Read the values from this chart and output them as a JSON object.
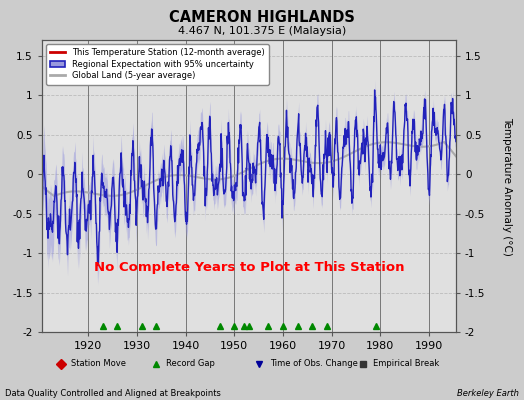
{
  "title": "CAMERON HIGHLANDS",
  "subtitle": "4.467 N, 101.375 E (Malaysia)",
  "ylabel": "Temperature Anomaly (°C)",
  "xlabel_left": "Data Quality Controlled and Aligned at Breakpoints",
  "xlabel_right": "Berkeley Earth",
  "no_data_text": "No Complete Years to Plot at This Station",
  "ylim": [
    -2.0,
    1.7
  ],
  "xlim": [
    1910.5,
    1995.5
  ],
  "yticks": [
    -2,
    -1.5,
    -1,
    -0.5,
    0,
    0.5,
    1,
    1.5
  ],
  "xticks": [
    1920,
    1930,
    1940,
    1950,
    1960,
    1970,
    1980,
    1990
  ],
  "background_color": "#cccccc",
  "plot_bg_color": "#e0e0e0",
  "regional_color": "#2222bb",
  "regional_fill_color": "#9999dd",
  "global_land_color": "#aaaaaa",
  "no_data_color": "#ff0000",
  "grid_color": "#bbbbbb",
  "vertical_line_color": "#777777",
  "vertical_lines": [
    1920,
    1930,
    1940,
    1950,
    1960,
    1970,
    1980,
    1990
  ],
  "record_gap_years": [
    1923,
    1926,
    1931,
    1934,
    1947,
    1950,
    1952,
    1953,
    1957,
    1960,
    1963,
    1966,
    1969,
    1979
  ],
  "seed": 17,
  "n_monthly": 1020,
  "start_year": 1910.5,
  "end_year": 1995.5,
  "legend_entries": [
    {
      "label": "This Temperature Station (12-month average)",
      "color": "#cc0000",
      "lw": 1.5
    },
    {
      "label": "Regional Expectation with 95% uncertainty",
      "color": "#2222bb",
      "fill": "#9999dd"
    },
    {
      "label": "Global Land (5-year average)",
      "color": "#aaaaaa",
      "lw": 1.5
    }
  ],
  "icon_entries": [
    {
      "label": "Station Move",
      "color": "#cc0000",
      "marker": "D"
    },
    {
      "label": "Record Gap",
      "color": "#008800",
      "marker": "^"
    },
    {
      "label": "Time of Obs. Change",
      "color": "#000099",
      "marker": "v"
    },
    {
      "label": "Empirical Break",
      "color": "#333333",
      "marker": "s"
    }
  ]
}
